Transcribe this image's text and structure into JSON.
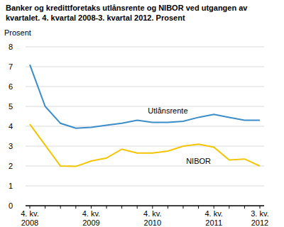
{
  "chart_data": {
    "type": "line",
    "title": "Banker og kredittforetaks utlånsrente og NIBOR ved utgangen av kvartalet. 4. kvartal 2008-3. kvartal 2012. Prosent",
    "y_label": "Prosent",
    "categories": [
      "4. kv. 2008",
      null,
      null,
      null,
      "4. kv. 2009",
      null,
      null,
      null,
      "4. kv. 2010",
      null,
      null,
      null,
      "4. kv. 2011",
      null,
      null,
      "3. kv. 2012"
    ],
    "series": [
      {
        "name": "Utlånsrente",
        "color": "#3a8dc8",
        "values": [
          7.1,
          5.0,
          4.15,
          3.9,
          3.95,
          4.05,
          4.15,
          4.3,
          4.2,
          4.2,
          4.25,
          4.45,
          4.6,
          4.45,
          4.3,
          4.3
        ]
      },
      {
        "name": "NIBOR",
        "color": "#f2c500",
        "values": [
          4.1,
          3.05,
          2.0,
          1.98,
          2.25,
          2.4,
          2.85,
          2.65,
          2.65,
          2.75,
          3.0,
          3.1,
          2.95,
          2.3,
          2.35,
          2.0
        ]
      }
    ],
    "ylim": [
      0,
      8
    ],
    "yticks": [
      0,
      1,
      2,
      3,
      4,
      5,
      6,
      7,
      8
    ],
    "grid": true
  }
}
